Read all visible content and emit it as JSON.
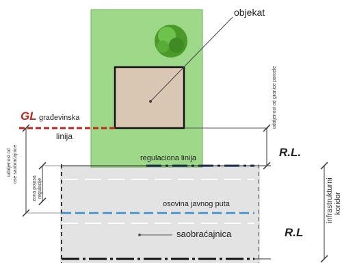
{
  "labels": {
    "objekat": "objekat",
    "gl": "GL",
    "gradevinska": "građevinska",
    "linija": "linija",
    "regulaciona_linija": "regulaciona linija",
    "rl_top": "R.L.",
    "rl_bottom": "R.L",
    "osovina": "osovina javnog puta",
    "saobracajnica": "saobraćajnica",
    "udaljenost_granice": "udaljenost od granice parcele",
    "udaljenost_saobracajnice_1": "udaljenost od",
    "udaljenost_saobracajnice_2": "ose saobraćajnice",
    "zona_pojasa_1": "zona pojasa",
    "zona_pojasa_2": "regulacije",
    "infrastrukturni_1": "infrastrukturni",
    "infrastrukturni_2": "koridor"
  },
  "colors": {
    "parcel_green": "#9ed98a",
    "building_fill": "#d9c7b3",
    "road_gray": "#e3e3e3",
    "gl_red": "#c0261f",
    "axis_blue": "#3a8fd1",
    "tree_green": "#4a9a2a"
  }
}
